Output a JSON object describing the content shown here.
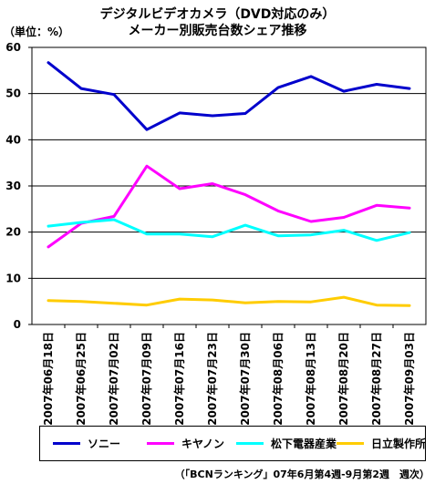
{
  "chart_data": {
    "type": "line",
    "title": [
      "デジタルビデオカメラ（DVD対応のみ）",
      "メーカー別販売台数シェア推移"
    ],
    "ylabel": "（単位：%）",
    "ylim": [
      0,
      60
    ],
    "yticks": [
      0,
      10,
      20,
      30,
      40,
      50,
      60
    ],
    "grid": true,
    "legend_position": "bottom",
    "categories": [
      "2007年06月18日",
      "2007年06月25日",
      "2007年07月02日",
      "2007年07月09日",
      "2007年07月16日",
      "2007年07月23日",
      "2007年07月30日",
      "2007年08月06日",
      "2007年08月13日",
      "2007年08月20日",
      "2007年08月27日",
      "2007年09月03日"
    ],
    "series": [
      {
        "name": "ソニー",
        "color": "#0000CC",
        "values": [
          56.7,
          51.1,
          49.8,
          42.2,
          45.8,
          45.2,
          45.7,
          51.3,
          53.7,
          50.5,
          52.0,
          51.1
        ]
      },
      {
        "name": "キヤノン",
        "color": "#FF00FF",
        "values": [
          16.8,
          21.9,
          23.4,
          34.3,
          29.4,
          30.5,
          28.1,
          24.6,
          22.3,
          23.2,
          25.8,
          25.2
        ]
      },
      {
        "name": "松下電器産業",
        "color": "#00FFFF",
        "values": [
          21.3,
          22.1,
          22.7,
          19.6,
          19.6,
          19.0,
          21.5,
          19.2,
          19.4,
          20.4,
          18.2,
          19.9
        ]
      },
      {
        "name": "日立製作所",
        "color": "#FFCC00",
        "values": [
          5.2,
          5.0,
          4.6,
          4.2,
          5.5,
          5.3,
          4.7,
          5.0,
          4.9,
          5.9,
          4.2,
          4.1
        ]
      }
    ]
  },
  "footnote": "（「BCNランキング」07年6月第4週-9月第2週　週次）"
}
